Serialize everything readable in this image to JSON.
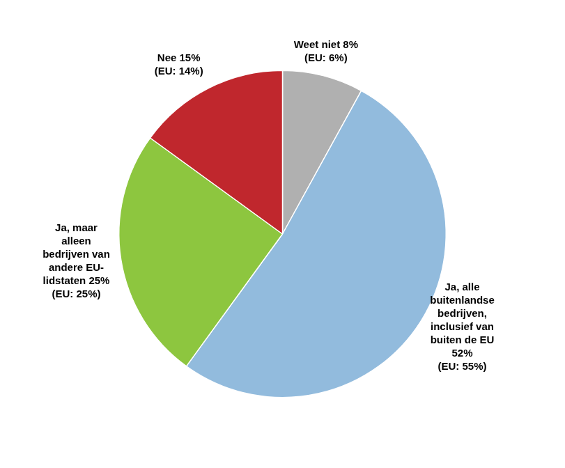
{
  "chart_data": {
    "type": "pie",
    "categories": [
      "Weet niet 8%\n(EU: 6%)",
      "Ja, alle\nbuitenlandse\nbedrijven,\ninclusief van\nbuiten de EU\n52%\n(EU: 55%)",
      "Ja, maar\nalleen\nbedrijven van\nandere EU-\nlidstaten 25%\n(EU: 25%)",
      "Nee 15%\n(EU: 14%)"
    ],
    "values": [
      8,
      52,
      25,
      15
    ],
    "colors": [
      "#B0B0B0",
      "#92BBDD",
      "#8DC63F",
      "#C0272D"
    ]
  }
}
